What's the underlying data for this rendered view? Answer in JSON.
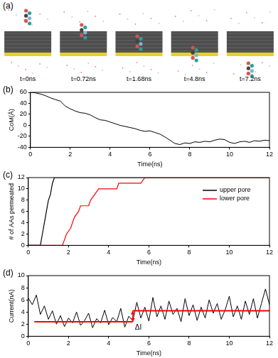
{
  "panel_a": {
    "label": "(a)",
    "frames": [
      "t=0ns",
      "t=0.72ns",
      "t=1.68ns",
      "t=4.8ns",
      "t=7.2ns"
    ]
  },
  "chart_data": [
    {
      "type": "line",
      "panel_label": "(b)",
      "x_label": "Time(ns)",
      "y_label": "CoM(Å)",
      "color": "#000000",
      "grid": false,
      "x": [
        0,
        0.25,
        0.5,
        0.75,
        1,
        1.25,
        1.5,
        1.75,
        2,
        2.25,
        2.5,
        2.75,
        3,
        3.25,
        3.5,
        3.75,
        4,
        4.25,
        4.5,
        4.75,
        5,
        5.25,
        5.5,
        5.75,
        6,
        6.25,
        6.5,
        6.75,
        7,
        7.25,
        7.5,
        7.75,
        8,
        8.25,
        8.5,
        8.75,
        9,
        9.25,
        9.5,
        9.75,
        10,
        10.25,
        10.5,
        10.75,
        11,
        11.25,
        11.5,
        11.75,
        12
      ],
      "values": [
        60,
        59,
        57,
        54,
        50,
        47,
        44,
        35,
        30,
        26,
        23,
        22,
        19,
        14,
        10,
        9,
        6,
        3,
        0,
        -2,
        -4,
        -6,
        -9,
        -11,
        -10,
        -13,
        -16,
        -21,
        -27,
        -33,
        -35,
        -32,
        -33,
        -30,
        -31,
        -29,
        -30,
        -27,
        -25,
        -26,
        -31,
        -33,
        -30,
        -29,
        -31,
        -28,
        -29,
        -27,
        -28
      ],
      "xlim": [
        0,
        12
      ],
      "xticks": [
        0,
        2,
        4,
        6,
        8,
        10,
        12
      ],
      "ylim": [
        -40,
        60
      ],
      "yticks": [
        -40,
        -20,
        0,
        20,
        40,
        60
      ]
    },
    {
      "type": "line",
      "panel_label": "(c)",
      "x_label": "Time(ns)",
      "y_label": "# of AAs permeated",
      "grid": false,
      "legend": "upper right",
      "series": [
        {
          "name": "upper pore",
          "color": "#000000",
          "x": [
            0,
            0.6,
            0.7,
            0.8,
            0.9,
            1.0,
            1.1,
            1.2,
            1.3,
            12
          ],
          "values": [
            0,
            0,
            2,
            4,
            6,
            8,
            9,
            11,
            12,
            12
          ]
        },
        {
          "name": "lower pore",
          "color": "#ff0000",
          "x": [
            0,
            1.7,
            1.9,
            2.1,
            2.3,
            2.5,
            2.6,
            3.0,
            3.1,
            3.3,
            3.5,
            3.7,
            4.4,
            4.5,
            5.6,
            5.8,
            12
          ],
          "values": [
            0,
            0,
            2,
            3,
            5,
            6,
            7,
            7,
            8,
            9,
            10,
            10,
            10,
            11,
            11,
            12,
            12
          ]
        }
      ],
      "xlim": [
        0,
        12
      ],
      "xticks": [
        0,
        2,
        4,
        6,
        8,
        10,
        12
      ],
      "ylim": [
        0,
        12
      ],
      "yticks": [
        0,
        2,
        4,
        6,
        8,
        10,
        12
      ]
    },
    {
      "type": "line",
      "panel_label": "(d)",
      "x_label": "Time(ns)",
      "y_label": "Current(nA)",
      "color": "#000000",
      "grid": false,
      "x": [
        0,
        0.2,
        0.4,
        0.6,
        0.8,
        1,
        1.2,
        1.4,
        1.6,
        1.8,
        2,
        2.2,
        2.4,
        2.6,
        2.8,
        3,
        3.2,
        3.4,
        3.6,
        3.8,
        4,
        4.2,
        4.4,
        4.6,
        4.8,
        5,
        5.2,
        5.4,
        5.6,
        5.8,
        6,
        6.2,
        6.4,
        6.6,
        6.8,
        7,
        7.2,
        7.4,
        7.6,
        7.8,
        8,
        8.2,
        8.4,
        8.6,
        8.8,
        9,
        9.2,
        9.4,
        9.6,
        9.8,
        10,
        10.2,
        10.4,
        10.6,
        10.8,
        11,
        11.2,
        11.4,
        11.6,
        11.8,
        12
      ],
      "values": [
        6.3,
        5.2,
        6.8,
        3.6,
        5.0,
        2.8,
        4.2,
        2.0,
        3.4,
        1.6,
        3.0,
        2.2,
        4.0,
        1.8,
        2.6,
        3.8,
        1.4,
        2.9,
        2.2,
        4.3,
        1.9,
        3.1,
        2.4,
        4.6,
        1.5,
        3.3,
        2.6,
        5.6,
        3.0,
        4.8,
        2.5,
        6.4,
        3.2,
        5.0,
        2.8,
        5.8,
        3.6,
        4.6,
        2.4,
        6.2,
        3.4,
        5.2,
        2.6,
        4.8,
        3.0,
        6.0,
        3.8,
        5.4,
        2.8,
        4.4,
        6.6,
        3.2,
        5.0,
        2.8,
        5.8,
        3.6,
        6.2,
        3.0,
        5.4,
        7.8,
        5.2
      ],
      "xlim": [
        0,
        12
      ],
      "xticks": [
        0,
        2,
        4,
        6,
        8,
        10,
        12
      ],
      "ylim": [
        0,
        10
      ],
      "yticks": [
        0,
        2,
        4,
        6,
        8,
        10
      ],
      "levels": [
        {
          "x_from": 0.3,
          "x_to": 5.2,
          "y": 2.4,
          "color": "#ff0000"
        },
        {
          "x_from": 5.2,
          "x_to": 12,
          "y": 4.2,
          "color": "#ff0000"
        }
      ],
      "annotation": {
        "text": "ΔI",
        "x": 5.2,
        "y_from": 2.4,
        "y_to": 4.2,
        "color": "#ff0000"
      }
    }
  ]
}
